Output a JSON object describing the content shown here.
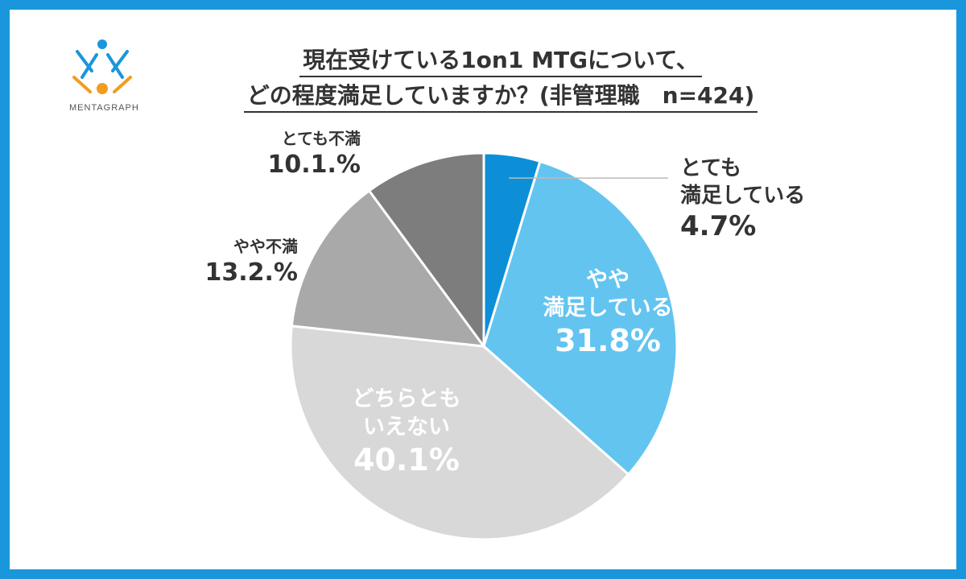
{
  "logo": {
    "text": "MENTAGRAPH",
    "colors": [
      "#1a96dc",
      "#f39c1f"
    ]
  },
  "title": {
    "line1": "現在受けている1on1 MTGについて、",
    "line2": "どの程度満足していますか？(非管理職　n=424)"
  },
  "colors": {
    "frame": "#1a96dc"
  },
  "chart_data": {
    "type": "pie",
    "start_angle_deg": 0,
    "direction": "clockwise",
    "slices": [
      {
        "label_lines": [
          "とても",
          "満足している"
        ],
        "value_label": "4.7%",
        "value": 4.7,
        "color": "#0d8fd8"
      },
      {
        "label_lines": [
          "やや",
          "満足している"
        ],
        "value_label": "31.8%",
        "value": 31.8,
        "color": "#63c4f0"
      },
      {
        "label_lines": [
          "どちらとも",
          "いえない"
        ],
        "value_label": "40.1%",
        "value": 40.1,
        "color": "#d8d8d8"
      },
      {
        "label_lines": [
          "やや不満"
        ],
        "value_label": "13.2.%",
        "value": 13.2,
        "color": "#a9a9a9"
      },
      {
        "label_lines": [
          "とても不満"
        ],
        "value_label": "10.1.%",
        "value": 10.1,
        "color": "#7d7d7d"
      }
    ]
  }
}
